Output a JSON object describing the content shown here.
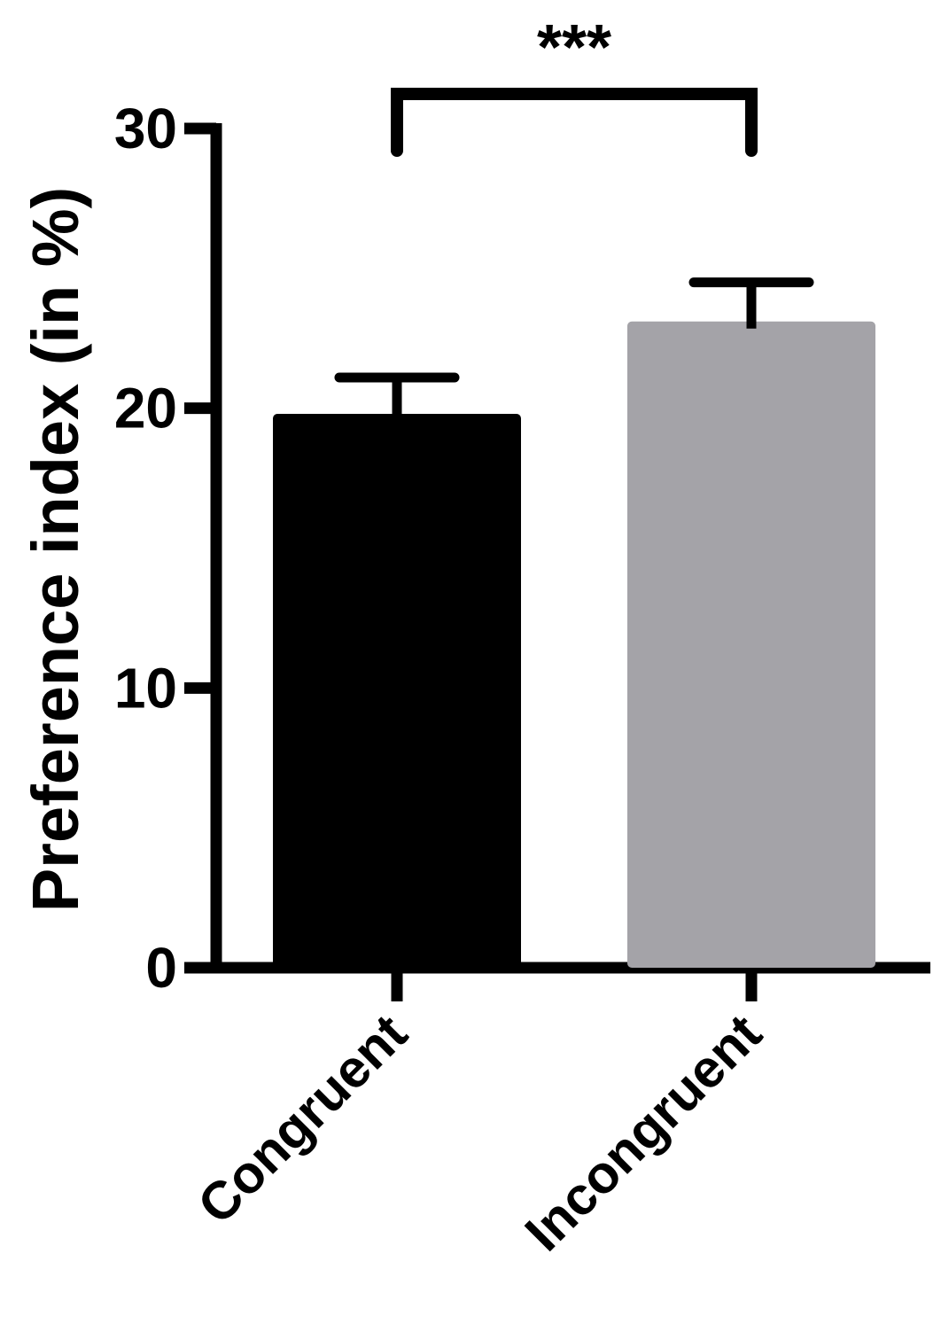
{
  "chart_data": {
    "type": "bar",
    "categories": [
      "Congruent",
      "Incongruent"
    ],
    "values": [
      19.8,
      23.1
    ],
    "error_upper": [
      21.1,
      24.5
    ],
    "colors": [
      "#000000",
      "#a4a3a8"
    ],
    "ylabel": "Preference index (in %)",
    "xlabel": "",
    "ylim": [
      0,
      30
    ],
    "yticks": [
      0,
      10,
      20,
      30
    ],
    "grid": false,
    "significance": {
      "from": 0,
      "to": 1,
      "label": "***"
    }
  }
}
